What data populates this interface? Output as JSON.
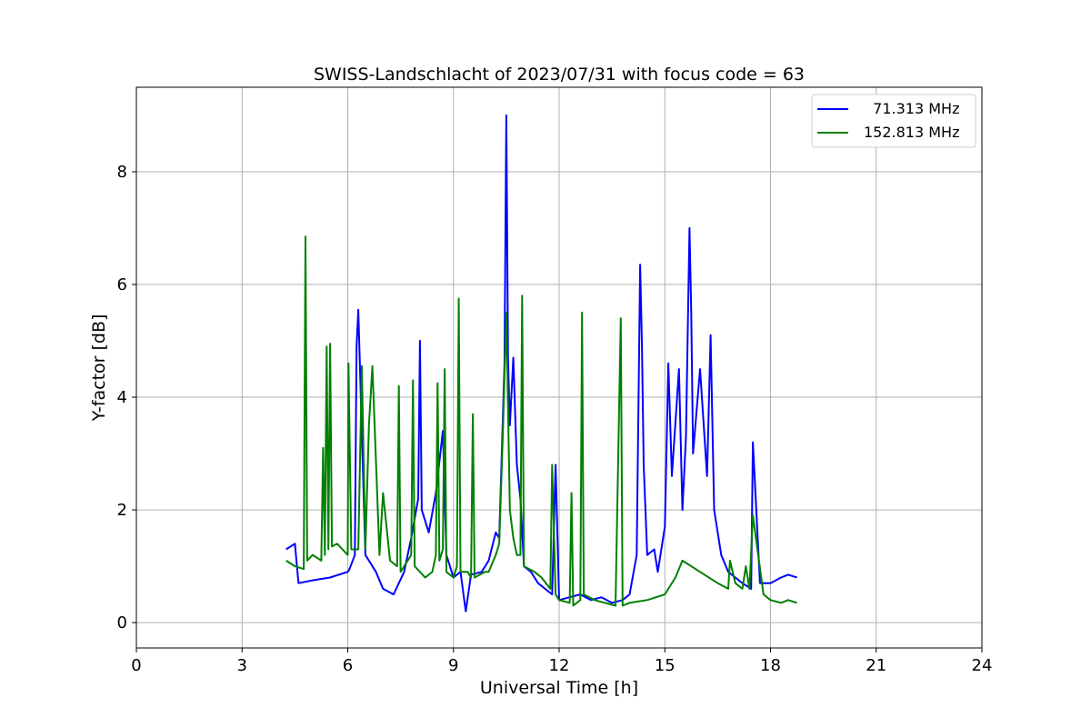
{
  "chart_data": {
    "type": "line",
    "title": "SWISS-Landschlacht of 2023/07/31 with focus code = 63",
    "xlabel": "Universal Time [h]",
    "ylabel": "Y-factor [dB]",
    "xlim": [
      0,
      24
    ],
    "ylim": [
      -0.45,
      9.5
    ],
    "xticks": [
      "0",
      "3",
      "6",
      "9",
      "12",
      "15",
      "18",
      "21",
      "24"
    ],
    "yticks": [
      "0",
      "2",
      "4",
      "6",
      "8"
    ],
    "grid": true,
    "legend_position": "top-right",
    "series": [
      {
        "name": "  71.313 MHz",
        "color": "#0000ff",
        "x": [
          4.25,
          4.5,
          4.6,
          5.0,
          5.5,
          6.0,
          6.05,
          6.2,
          6.25,
          6.3,
          6.5,
          6.8,
          7.0,
          7.3,
          7.6,
          7.8,
          8.0,
          8.05,
          8.1,
          8.3,
          8.5,
          8.7,
          8.8,
          9.0,
          9.2,
          9.35,
          9.5,
          9.8,
          10.0,
          10.2,
          10.3,
          10.45,
          10.5,
          10.55,
          10.6,
          10.7,
          10.8,
          10.9,
          11.0,
          11.2,
          11.4,
          11.6,
          11.8,
          11.9,
          12.0,
          12.3,
          12.6,
          12.9,
          13.2,
          13.5,
          13.8,
          14.0,
          14.2,
          14.3,
          14.35,
          14.4,
          14.5,
          14.7,
          14.8,
          15.0,
          15.1,
          15.2,
          15.4,
          15.5,
          15.6,
          15.7,
          15.75,
          15.8,
          16.0,
          16.2,
          16.3,
          16.4,
          16.6,
          16.8,
          17.0,
          17.2,
          17.45,
          17.5,
          17.7,
          18.0,
          18.3,
          18.5,
          18.75
        ],
        "y": [
          1.3,
          1.4,
          0.7,
          0.75,
          0.8,
          0.9,
          0.95,
          1.2,
          4.9,
          5.55,
          1.2,
          0.9,
          0.6,
          0.5,
          0.9,
          1.5,
          2.2,
          5.0,
          2.0,
          1.6,
          2.3,
          3.4,
          1.2,
          0.8,
          0.9,
          0.2,
          0.85,
          0.9,
          1.1,
          1.6,
          1.5,
          4.6,
          9.0,
          4.7,
          3.5,
          4.7,
          2.8,
          2.2,
          1.0,
          0.9,
          0.7,
          0.6,
          0.5,
          2.8,
          0.4,
          0.45,
          0.5,
          0.4,
          0.45,
          0.35,
          0.4,
          0.5,
          1.2,
          6.35,
          4.9,
          2.8,
          1.2,
          1.3,
          0.9,
          1.7,
          4.6,
          2.6,
          4.5,
          2.0,
          3.3,
          7.0,
          5.5,
          3.0,
          4.5,
          2.6,
          5.1,
          2.0,
          1.2,
          0.9,
          0.8,
          0.7,
          0.6,
          3.2,
          0.7,
          0.7,
          0.8,
          0.85,
          0.8
        ]
      },
      {
        "name": "152.813 MHz",
        "color": "#008000",
        "x": [
          4.25,
          4.5,
          4.75,
          4.8,
          4.85,
          5.0,
          5.25,
          5.3,
          5.35,
          5.4,
          5.45,
          5.5,
          5.55,
          5.7,
          6.0,
          6.02,
          6.1,
          6.3,
          6.4,
          6.5,
          6.6,
          6.7,
          6.9,
          7.0,
          7.2,
          7.4,
          7.45,
          7.5,
          7.6,
          7.8,
          7.85,
          7.9,
          8.2,
          8.4,
          8.5,
          8.55,
          8.6,
          8.7,
          8.75,
          8.8,
          9.0,
          9.1,
          9.15,
          9.2,
          9.4,
          9.5,
          9.55,
          9.6,
          9.9,
          10.0,
          10.2,
          10.3,
          10.4,
          10.5,
          10.6,
          10.7,
          10.8,
          10.9,
          10.95,
          11.0,
          11.3,
          11.5,
          11.75,
          11.8,
          11.9,
          12.0,
          12.3,
          12.35,
          12.4,
          12.6,
          12.65,
          12.7,
          13.0,
          13.3,
          13.6,
          13.75,
          13.8,
          14.0,
          14.5,
          15.0,
          15.3,
          15.5,
          16.0,
          16.5,
          16.8,
          16.85,
          17.0,
          17.2,
          17.3,
          17.4,
          17.5,
          17.8,
          18.0,
          18.3,
          18.5,
          18.75
        ],
        "y": [
          1.1,
          1.0,
          0.95,
          6.85,
          1.1,
          1.2,
          1.1,
          3.1,
          1.2,
          4.9,
          1.3,
          4.95,
          1.35,
          1.4,
          1.2,
          4.6,
          1.3,
          1.3,
          4.55,
          1.3,
          3.5,
          4.55,
          1.2,
          2.3,
          1.1,
          1.0,
          4.2,
          0.9,
          1.0,
          1.2,
          4.3,
          1.0,
          0.8,
          0.9,
          1.2,
          4.25,
          1.1,
          1.3,
          4.5,
          0.9,
          0.8,
          1.0,
          5.75,
          0.9,
          0.9,
          0.8,
          3.7,
          0.8,
          0.9,
          0.9,
          1.2,
          1.4,
          3.3,
          5.5,
          2.0,
          1.5,
          1.2,
          1.2,
          5.8,
          1.0,
          0.9,
          0.8,
          0.6,
          2.8,
          0.5,
          0.4,
          0.35,
          2.3,
          0.3,
          0.4,
          5.5,
          0.5,
          0.4,
          0.35,
          0.3,
          5.4,
          0.3,
          0.35,
          0.4,
          0.5,
          0.8,
          1.1,
          0.9,
          0.7,
          0.6,
          1.1,
          0.7,
          0.6,
          1.0,
          0.6,
          1.9,
          0.5,
          0.4,
          0.35,
          0.4,
          0.35
        ]
      }
    ]
  }
}
